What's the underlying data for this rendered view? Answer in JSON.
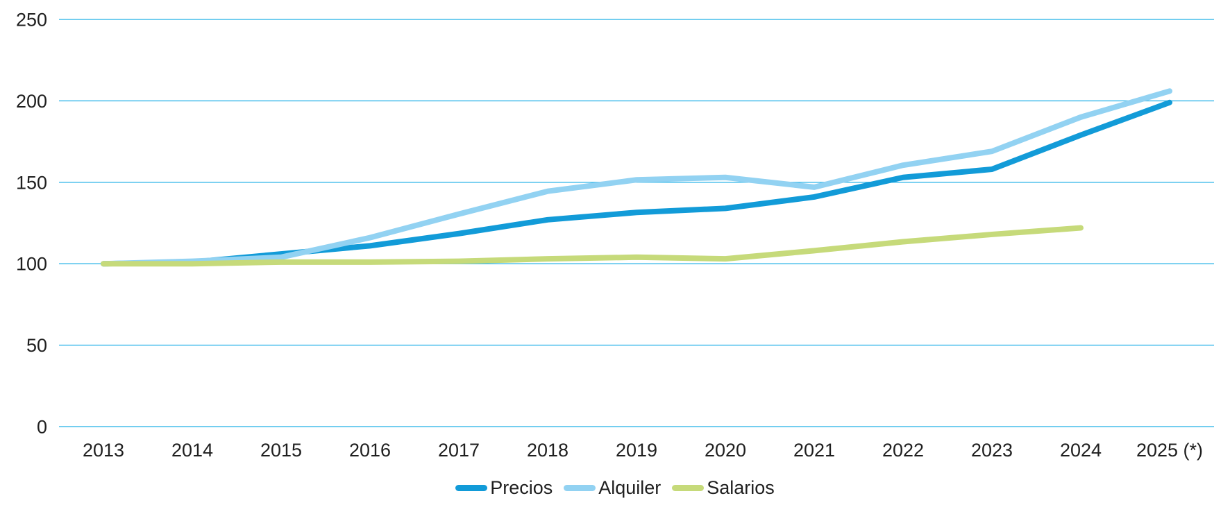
{
  "chart_data": {
    "type": "line",
    "title": "",
    "xlabel": "",
    "ylabel": "",
    "categories": [
      "2013",
      "2014",
      "2015",
      "2016",
      "2017",
      "2018",
      "2019",
      "2020",
      "2021",
      "2022",
      "2023",
      "2024",
      "2025 (*)"
    ],
    "series": [
      {
        "name": "Precios",
        "color": "#129bd8",
        "values": [
          100,
          101,
          106,
          111,
          118.5,
          127,
          131.5,
          134,
          141,
          153,
          158,
          179,
          199
        ]
      },
      {
        "name": "Alquiler",
        "color": "#92d2f2",
        "values": [
          100,
          101.5,
          104,
          116,
          130.5,
          144.5,
          151.5,
          153,
          147,
          160.5,
          169,
          190,
          206
        ]
      },
      {
        "name": "Salarios",
        "color": "#c6da7a",
        "values": [
          100,
          100,
          101,
          101,
          101.5,
          103,
          104,
          103,
          108,
          113.5,
          118,
          122,
          null
        ]
      }
    ],
    "ylim": [
      0,
      250
    ],
    "yticks": [
      0,
      50,
      100,
      150,
      200,
      250
    ],
    "grid": "horizontal",
    "gridline_color": "#45bdeb",
    "text_color": "#1f1f1f",
    "legend_position": "bottom",
    "line_width": 8
  }
}
